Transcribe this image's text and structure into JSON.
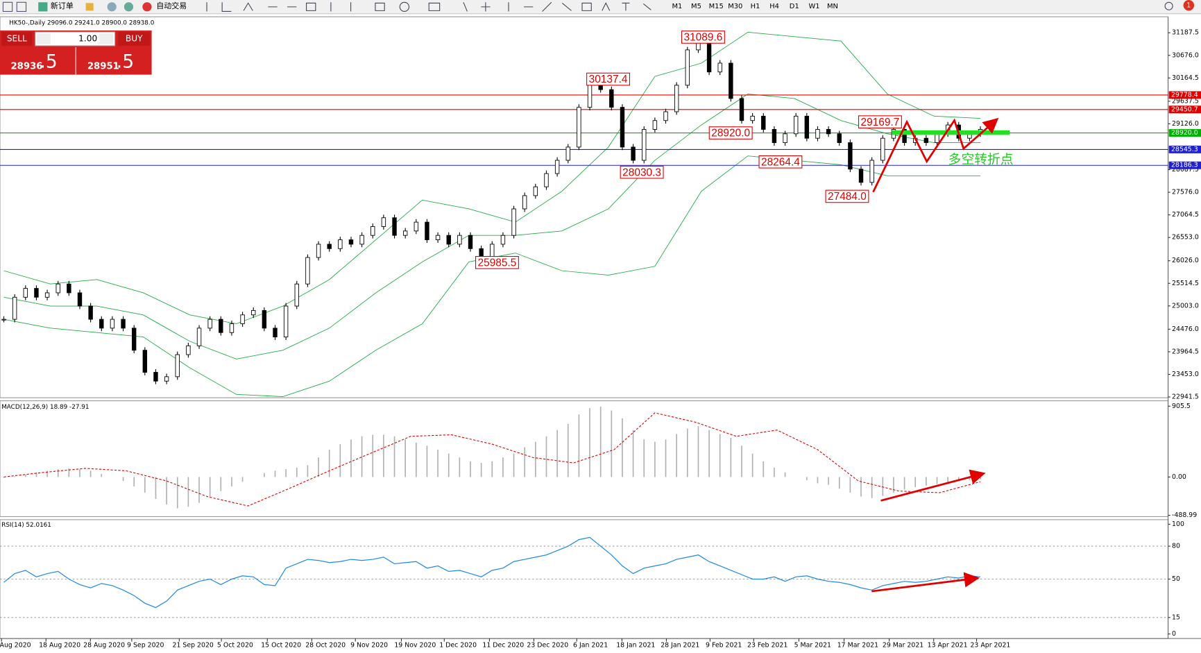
{
  "toolbar": {
    "new_order": "新订单",
    "auto_trading": "自动交易",
    "timeframes": [
      "M1",
      "M5",
      "M15",
      "M30",
      "H1",
      "H4",
      "D1",
      "W1",
      "MN"
    ],
    "notifications": "1"
  },
  "trade_panel": {
    "sell": "SELL",
    "buy": "BUY",
    "lot": "1.00",
    "bid": {
      "main": "28936",
      "frac": ".5"
    },
    "ask": {
      "main": "28951",
      "frac": ".5"
    }
  },
  "chart_data": [
    {
      "type": "candlestick",
      "title": "HK50-,Daily  29096.0 29241.0 28900.0 28938.0",
      "close": [
        24700,
        25200,
        25400,
        25200,
        25300,
        25500,
        25300,
        25000,
        24700,
        24500,
        24700,
        24500,
        24000,
        23500,
        23300,
        23400,
        23900,
        24100,
        24500,
        24700,
        24400,
        24600,
        24800,
        24900,
        24500,
        24300,
        25000,
        25500,
        26100,
        26400,
        26300,
        26500,
        26400,
        26600,
        26800,
        27000,
        26600,
        26700,
        26900,
        26500,
        26600,
        26400,
        26600,
        26300,
        26100,
        26400,
        26600,
        27200,
        27500,
        27700,
        28000,
        28300,
        28600,
        29500,
        30100,
        29900,
        29500,
        28600,
        28300,
        29000,
        29200,
        29400,
        30000,
        30800,
        31000,
        30300,
        30500,
        29700,
        29200,
        29300,
        29000,
        28700,
        28900,
        29300,
        28800,
        29000,
        28900,
        28700,
        28100,
        27800,
        28300,
        28800,
        29000,
        28700,
        28800,
        28700,
        28900,
        29100,
        28800,
        28900,
        29000
      ],
      "bollinger": {
        "color": "#22aa44",
        "upper": [
          25800,
          25500,
          25600,
          25300,
          24800,
          24600,
          25000,
          25600,
          26500,
          27400,
          27200,
          26900,
          27600,
          28600,
          30200,
          30500,
          31200,
          31100,
          31000,
          29800,
          29300,
          29250
        ],
        "middle": [
          25200,
          25000,
          25000,
          24800,
          24200,
          23800,
          24000,
          24500,
          25300,
          26000,
          26600,
          26600,
          26700,
          27200,
          28300,
          29100,
          29800,
          29700,
          29200,
          28900,
          28700,
          28700
        ],
        "lower": [
          24700,
          24500,
          24400,
          24300,
          23600,
          23000,
          22950,
          23300,
          24000,
          24600,
          26000,
          26200,
          25800,
          25700,
          25900,
          27600,
          28400,
          28300,
          28200,
          27950,
          27950,
          27950
        ]
      },
      "ylim": [
        22924,
        31550
      ],
      "yticks": [
        {
          "value": 31187.5,
          "label": "31187.5"
        },
        {
          "value": 30676,
          "label": "30676.0"
        },
        {
          "value": 30164.5,
          "label": "30164.5"
        },
        {
          "value": 29637.5,
          "label": "29637.5"
        },
        {
          "value": 29126,
          "label": "29126.0"
        },
        {
          "value": 28087.5,
          "label": "28087.5"
        },
        {
          "value": 27576,
          "label": "27576.0"
        },
        {
          "value": 27064.5,
          "label": "27064.5"
        },
        {
          "value": 26553,
          "label": "26553.0"
        },
        {
          "value": 26026,
          "label": "26026.0"
        },
        {
          "value": 25514.5,
          "label": "25514.5"
        },
        {
          "value": 25003,
          "label": "25003.0"
        },
        {
          "value": 24476,
          "label": "24476.0"
        },
        {
          "value": 23964.5,
          "label": "23964.5"
        },
        {
          "value": 23453,
          "label": "23453.0"
        },
        {
          "value": 22941.5,
          "label": "22941.5"
        }
      ],
      "levels": [
        {
          "value": 29778.4,
          "label": "29778.4",
          "color": "#e00000"
        },
        {
          "value": 29450.7,
          "label": "29450.7",
          "color": "#e00000"
        },
        {
          "value": 28920,
          "label": "28920.0",
          "color": "#00b000"
        },
        {
          "value": 28545.3,
          "label": "28545.3",
          "color": "#2020d0"
        },
        {
          "value": 28186.3,
          "label": "28186.3",
          "color": "#2020d0"
        }
      ],
      "annotations": [
        {
          "value": 31089.6,
          "label": "31089.6"
        },
        {
          "value": 30137.4,
          "label": "30137.4"
        },
        {
          "value": 29169.7,
          "label": "29169.7"
        },
        {
          "value": 28920,
          "label": "28920.0"
        },
        {
          "value": 28030.3,
          "label": "28030.3"
        },
        {
          "value": 28264.4,
          "label": "28264.4"
        },
        {
          "value": 27484,
          "label": "27484.0"
        },
        {
          "value": 25985.5,
          "label": "25985.5"
        }
      ],
      "note": "多空转折点",
      "x_labels": [
        "Aug 2020",
        "18 Aug 2020",
        "28 Aug 2020",
        "9 Sep 2020",
        "21 Sep 2020",
        "5 Oct 2020",
        "15 Oct 2020",
        "28 Oct 2020",
        "9 Nov 2020",
        "19 Nov 2020",
        "1 Dec 2020",
        "11 Dec 2020",
        "23 Dec 2020",
        "6 Jan 2021",
        "18 Jan 2021",
        "28 Jan 2021",
        "9 Feb 2021",
        "23 Feb 2021",
        "5 Mar 2021",
        "17 Mar 2021",
        "29 Mar 2021",
        "13 Apr 2021",
        "23 Apr 2021"
      ]
    },
    {
      "type": "macd",
      "title": "MACD(12,26,9) 18.89 -27.91",
      "histogram": [
        -10,
        10,
        30,
        60,
        80,
        100,
        110,
        100,
        80,
        40,
        0,
        -50,
        -120,
        -200,
        -280,
        -350,
        -400,
        -380,
        -330,
        -250,
        -180,
        -120,
        -60,
        0,
        50,
        80,
        100,
        120,
        150,
        250,
        350,
        420,
        480,
        520,
        540,
        540,
        520,
        480,
        440,
        400,
        350,
        300,
        250,
        200,
        180,
        200,
        250,
        300,
        380,
        450,
        520,
        600,
        680,
        800,
        880,
        900,
        850,
        750,
        600,
        480,
        450,
        480,
        550,
        620,
        650,
        600,
        550,
        500,
        400,
        300,
        200,
        120,
        60,
        0,
        -40,
        -80,
        -100,
        -150,
        -200,
        -250,
        -270,
        -240,
        -200,
        -160,
        -130,
        -110,
        -90,
        -70,
        -50,
        -40,
        -30
      ],
      "signal": [
        0,
        60,
        110,
        80,
        -50,
        -250,
        -370,
        -150,
        80,
        300,
        520,
        540,
        420,
        250,
        180,
        350,
        820,
        700,
        520,
        600,
        350,
        -50,
        -180,
        -200,
        -60
      ],
      "hist_color": "#b0b0b0",
      "signal_color": "#e00000",
      "ylim": [
        -506,
        974
      ],
      "yticks": [
        905.5,
        {
          "value": 0,
          "label": "0.00"
        },
        -488.99
      ]
    },
    {
      "type": "line",
      "title": "RSI(14) 52.0161",
      "values": [
        47,
        55,
        58,
        52,
        55,
        57,
        50,
        45,
        42,
        46,
        44,
        40,
        35,
        28,
        24,
        30,
        40,
        44,
        48,
        50,
        45,
        50,
        53,
        52,
        45,
        44,
        60,
        64,
        68,
        67,
        65,
        66,
        68,
        67,
        68,
        70,
        64,
        65,
        66,
        60,
        62,
        57,
        58,
        55,
        52,
        58,
        60,
        66,
        68,
        70,
        72,
        76,
        80,
        86,
        88,
        80,
        72,
        62,
        55,
        60,
        62,
        64,
        68,
        70,
        72,
        66,
        62,
        58,
        54,
        50,
        50,
        52,
        48,
        52,
        53,
        50,
        48,
        47,
        45,
        42,
        40,
        44,
        46,
        48,
        47,
        48,
        50,
        52,
        51,
        53,
        52
      ],
      "color": "#1e88e5",
      "ylim": [
        -4.2,
        104.2
      ],
      "yticks": [
        100,
        80,
        50,
        15,
        0
      ],
      "levels": [
        80,
        50,
        15
      ]
    }
  ]
}
